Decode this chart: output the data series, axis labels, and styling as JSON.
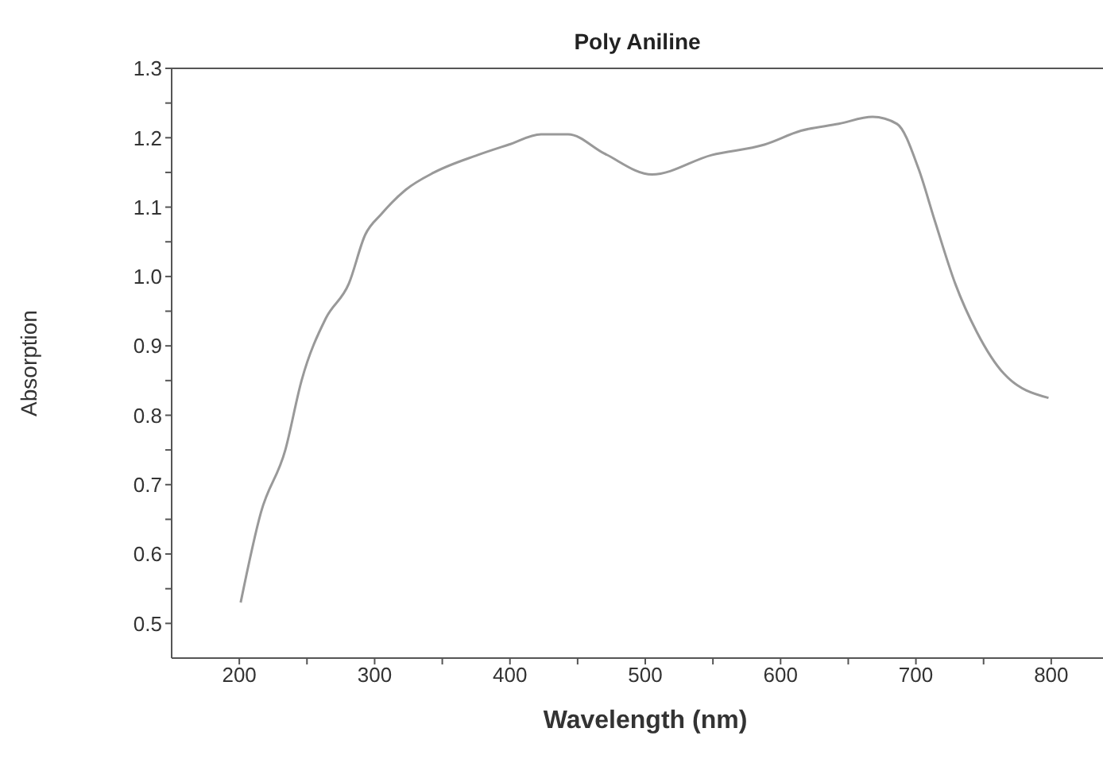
{
  "chart_data": {
    "type": "line",
    "title": "Poly Aniline",
    "xlabel": "Wavelength (nm)",
    "ylabel": "Absorption",
    "xlim": [
      150,
      850
    ],
    "ylim": [
      0.45,
      1.3
    ],
    "xticks": [
      200,
      {
        "value": 250,
        "label": null
      },
      300,
      {
        "value": 350,
        "label": null
      },
      400,
      {
        "value": 450,
        "label": null
      },
      500,
      {
        "value": 550,
        "label": null
      },
      600,
      {
        "value": 650,
        "label": null
      },
      700,
      {
        "value": 750,
        "label": null
      },
      800
    ],
    "yticks": [
      0.5,
      {
        "value": 0.55,
        "label": null
      },
      0.6,
      {
        "value": 0.65,
        "label": null
      },
      0.7,
      {
        "value": 0.75,
        "label": null
      },
      0.8,
      {
        "value": 0.85,
        "label": null
      },
      0.9,
      {
        "value": 0.95,
        "label": null
      },
      {
        "value": 1,
        "label": "1.0"
      },
      {
        "value": 1.05,
        "label": null
      },
      1.1,
      {
        "value": 1.15,
        "label": null
      },
      1.2,
      {
        "value": 1.25,
        "label": null
      },
      1.3
    ],
    "marker": "none",
    "line_style": "solid",
    "series": [
      {
        "color": "#999999",
        "x": [
          201,
          216,
          234,
          246,
          264,
          281,
          293,
          305,
          323,
          344,
          376,
          399,
          423,
          443,
          470,
          505,
          549,
          588,
          615,
          643,
          668,
          686,
          702,
          714,
          729,
          745,
          765,
          798
        ],
        "values": [
          0.53,
          0.66,
          0.75,
          0.85,
          0.94,
          0.99,
          1.06,
          1.09,
          1.125,
          1.15,
          1.175,
          1.19,
          1.205,
          1.205,
          1.177,
          1.147,
          1.175,
          1.19,
          1.21,
          1.22,
          1.23,
          1.22,
          1.155,
          1.08,
          0.99,
          0.92,
          0.86,
          0.825
        ]
      }
    ]
  }
}
